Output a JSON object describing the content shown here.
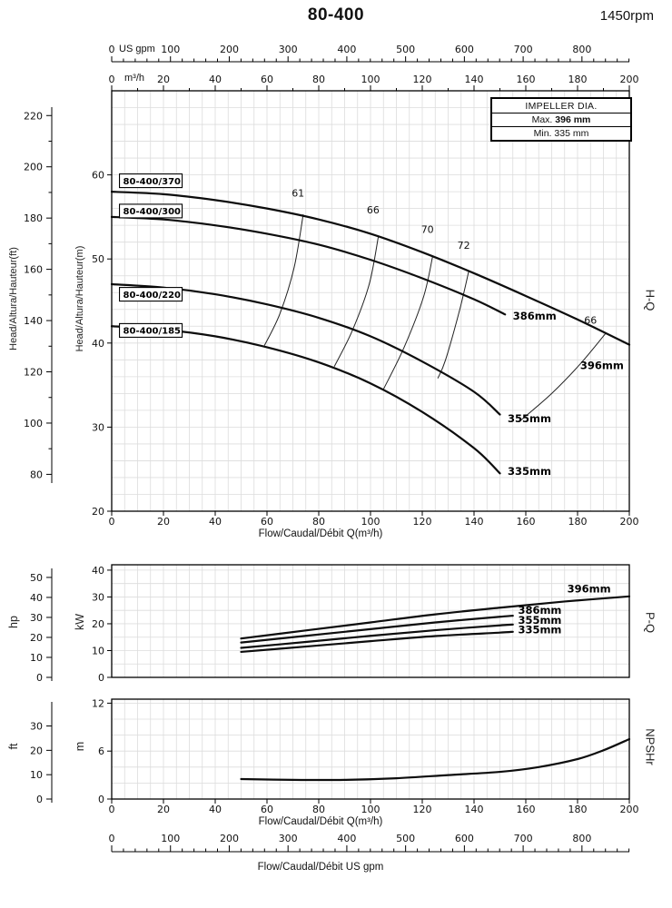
{
  "header": {
    "title": "80-400",
    "rpm": "1450rpm"
  },
  "impeller_box": {
    "title": "IMPELLER DIA.",
    "max_label": "Max.",
    "max_value": "396 mm",
    "min_label": "Min.",
    "min_value": "335 mm"
  },
  "right_labels": {
    "hq": "H-Q",
    "pq": "P-Q",
    "npshr": "NPSHr"
  },
  "left_labels": {
    "head_ft": "Head/Altura/Hauteur(ft)",
    "head_m": "Head/Altura/Hauteur(m)",
    "hp": "hp",
    "kw": "kW",
    "ft": "ft",
    "m": "m"
  },
  "axis_titles": {
    "flow_m3h": "Flow/Caudal/Débit Q(m³/h)",
    "flow_gpm": "Flow/Caudal/Débit  US gpm",
    "us_gpm_unit": "US gpm",
    "m3h_unit": "m³/h"
  },
  "top_axis": {
    "gpm_ticks": [
      0,
      100,
      200,
      300,
      400,
      500,
      600,
      700,
      800
    ],
    "m3h_ticks": [
      0,
      20,
      40,
      60,
      80,
      100,
      120,
      140,
      160,
      180,
      200
    ]
  },
  "bottom_axis": {
    "gpm_ticks": [
      0,
      100,
      200,
      300,
      400,
      500,
      600,
      700,
      800
    ]
  },
  "chart_data": [
    {
      "id": "hq",
      "type": "line",
      "title": "H-Q",
      "xlabel": "Flow/Caudal/Débit Q(m³/h)",
      "ylabel": "Head/Altura/Hauteur(m)",
      "y2label": "Head/Altura/Hauteur(ft)",
      "xlim": [
        0,
        200
      ],
      "ylim": [
        20,
        70
      ],
      "xticks": [
        0,
        20,
        40,
        60,
        80,
        100,
        120,
        140,
        160,
        180,
        200
      ],
      "yticks_m": [
        20,
        30,
        40,
        50,
        60
      ],
      "yticks_ft": [
        80,
        100,
        120,
        140,
        160,
        180,
        200,
        220
      ],
      "series": [
        {
          "name": "396mm",
          "motor_label": "80-400/370",
          "motor_label_pos": [
            3,
            59.3
          ],
          "points": [
            [
              0,
              58
            ],
            [
              20,
              57.7
            ],
            [
              40,
              57
            ],
            [
              60,
              56
            ],
            [
              80,
              54.7
            ],
            [
              100,
              53
            ],
            [
              120,
              50.8
            ],
            [
              140,
              48.3
            ],
            [
              160,
              45.6
            ],
            [
              180,
              42.8
            ],
            [
              200,
              39.8
            ]
          ]
        },
        {
          "name": "386mm",
          "motor_label": "80-400/300",
          "motor_label_pos": [
            3,
            55.7
          ],
          "points": [
            [
              0,
              55
            ],
            [
              20,
              54.7
            ],
            [
              40,
              54
            ],
            [
              60,
              53
            ],
            [
              80,
              51.7
            ],
            [
              100,
              49.9
            ],
            [
              120,
              47.7
            ],
            [
              140,
              45.2
            ],
            [
              152,
              43.4
            ]
          ]
        },
        {
          "name": "355mm",
          "motor_label": "80-400/220",
          "motor_label_pos": [
            3,
            45.8
          ],
          "points": [
            [
              0,
              47
            ],
            [
              20,
              46.6
            ],
            [
              40,
              45.8
            ],
            [
              60,
              44.6
            ],
            [
              80,
              43
            ],
            [
              100,
              40.8
            ],
            [
              120,
              37.8
            ],
            [
              140,
              34.2
            ],
            [
              150,
              31.5
            ]
          ]
        },
        {
          "name": "335mm",
          "motor_label": "80-400/185",
          "motor_label_pos": [
            3,
            41.5
          ],
          "points": [
            [
              0,
              42
            ],
            [
              20,
              41.6
            ],
            [
              40,
              40.8
            ],
            [
              60,
              39.5
            ],
            [
              80,
              37.7
            ],
            [
              100,
              35.2
            ],
            [
              120,
              31.8
            ],
            [
              140,
              27.5
            ],
            [
              150,
              24.5
            ]
          ]
        }
      ],
      "efficiency_lines": [
        {
          "label": "61",
          "label_pos": [
            72,
            57.4
          ],
          "points": [
            [
              74,
              55.3
            ],
            [
              70.5,
              49
            ],
            [
              65,
              43.5
            ],
            [
              59,
              39.7
            ]
          ]
        },
        {
          "label": "66",
          "label_pos": [
            101,
            55.4
          ],
          "points": [
            [
              103,
              52.6
            ],
            [
              99.5,
              47
            ],
            [
              93,
              41.5
            ],
            [
              86,
              37.2
            ]
          ]
        },
        {
          "label": "70",
          "label_pos": [
            122,
            53.1
          ],
          "points": [
            [
              124,
              50.3
            ],
            [
              120.5,
              45.5
            ],
            [
              113,
              39.5
            ],
            [
              105,
              34.5
            ]
          ]
        },
        {
          "label": "72",
          "label_pos": [
            136,
            51.2
          ],
          "points": [
            [
              138,
              48.6
            ],
            [
              134.5,
              44
            ],
            [
              129,
              38
            ],
            [
              126,
              35.8
            ]
          ]
        },
        {
          "label": "66",
          "label_pos": [
            185,
            42.3
          ],
          "points": [
            [
              191,
              41.2
            ],
            [
              181,
              37.5
            ],
            [
              170,
              34
            ],
            [
              158,
              30.8
            ]
          ]
        }
      ],
      "annotations": [
        {
          "text": "386mm",
          "pos": [
            155,
            42.8
          ]
        },
        {
          "text": "355mm",
          "pos": [
            153,
            30.6
          ]
        },
        {
          "text": "335mm",
          "pos": [
            153,
            24.3
          ]
        },
        {
          "text": "396mm",
          "pos": [
            181,
            36.9
          ]
        }
      ]
    },
    {
      "id": "pq",
      "type": "line",
      "title": "P-Q",
      "ylabel": "kW",
      "y2label": "hp",
      "xlim": [
        0,
        200
      ],
      "ylim": [
        0,
        42
      ],
      "yticks_kw": [
        0,
        10,
        20,
        30,
        40
      ],
      "yticks_hp": [
        0,
        10,
        20,
        30,
        40,
        50
      ],
      "series": [
        {
          "name": "396mm",
          "points": [
            [
              50,
              14.5
            ],
            [
              75,
              17.5
            ],
            [
              100,
              20.5
            ],
            [
              125,
              23.5
            ],
            [
              150,
              26
            ],
            [
              175,
              28.3
            ],
            [
              200,
              30.2
            ]
          ]
        },
        {
          "name": "386mm",
          "points": [
            [
              50,
              13
            ],
            [
              75,
              15.5
            ],
            [
              100,
              18
            ],
            [
              125,
              20.5
            ],
            [
              150,
              22.6
            ],
            [
              155,
              23
            ]
          ]
        },
        {
          "name": "355mm",
          "points": [
            [
              50,
              11
            ],
            [
              75,
              13.2
            ],
            [
              100,
              15.5
            ],
            [
              125,
              17.6
            ],
            [
              150,
              19.4
            ],
            [
              155,
              19.7
            ]
          ]
        },
        {
          "name": "335mm",
          "points": [
            [
              50,
              9.5
            ],
            [
              75,
              11.5
            ],
            [
              100,
              13.5
            ],
            [
              125,
              15.4
            ],
            [
              150,
              16.7
            ],
            [
              155,
              17
            ]
          ]
        }
      ],
      "annotations": [
        {
          "text": "396mm",
          "pos": [
            176,
            31.6
          ]
        },
        {
          "text": "386mm",
          "pos": [
            157,
            23.7
          ]
        },
        {
          "text": "355mm",
          "pos": [
            157,
            20
          ]
        },
        {
          "text": "335mm",
          "pos": [
            157,
            16.4
          ]
        }
      ]
    },
    {
      "id": "np",
      "type": "line",
      "title": "NPSHr",
      "ylabel": "m",
      "y2label": "ft",
      "xlim": [
        0,
        200
      ],
      "ylim": [
        0,
        12.5
      ],
      "xticks": [
        0,
        20,
        40,
        60,
        80,
        100,
        120,
        140,
        160,
        180,
        200
      ],
      "yticks_m": [
        0,
        6,
        12
      ],
      "yticks_ft": [
        0,
        10,
        20,
        30
      ],
      "series": [
        {
          "name": "NPSHr",
          "points": [
            [
              50,
              2.5
            ],
            [
              70,
              2.4
            ],
            [
              90,
              2.4
            ],
            [
              110,
              2.6
            ],
            [
              130,
              3
            ],
            [
              150,
              3.4
            ],
            [
              165,
              4
            ],
            [
              180,
              5
            ],
            [
              190,
              6.1
            ],
            [
              200,
              7.5
            ]
          ]
        }
      ]
    }
  ]
}
